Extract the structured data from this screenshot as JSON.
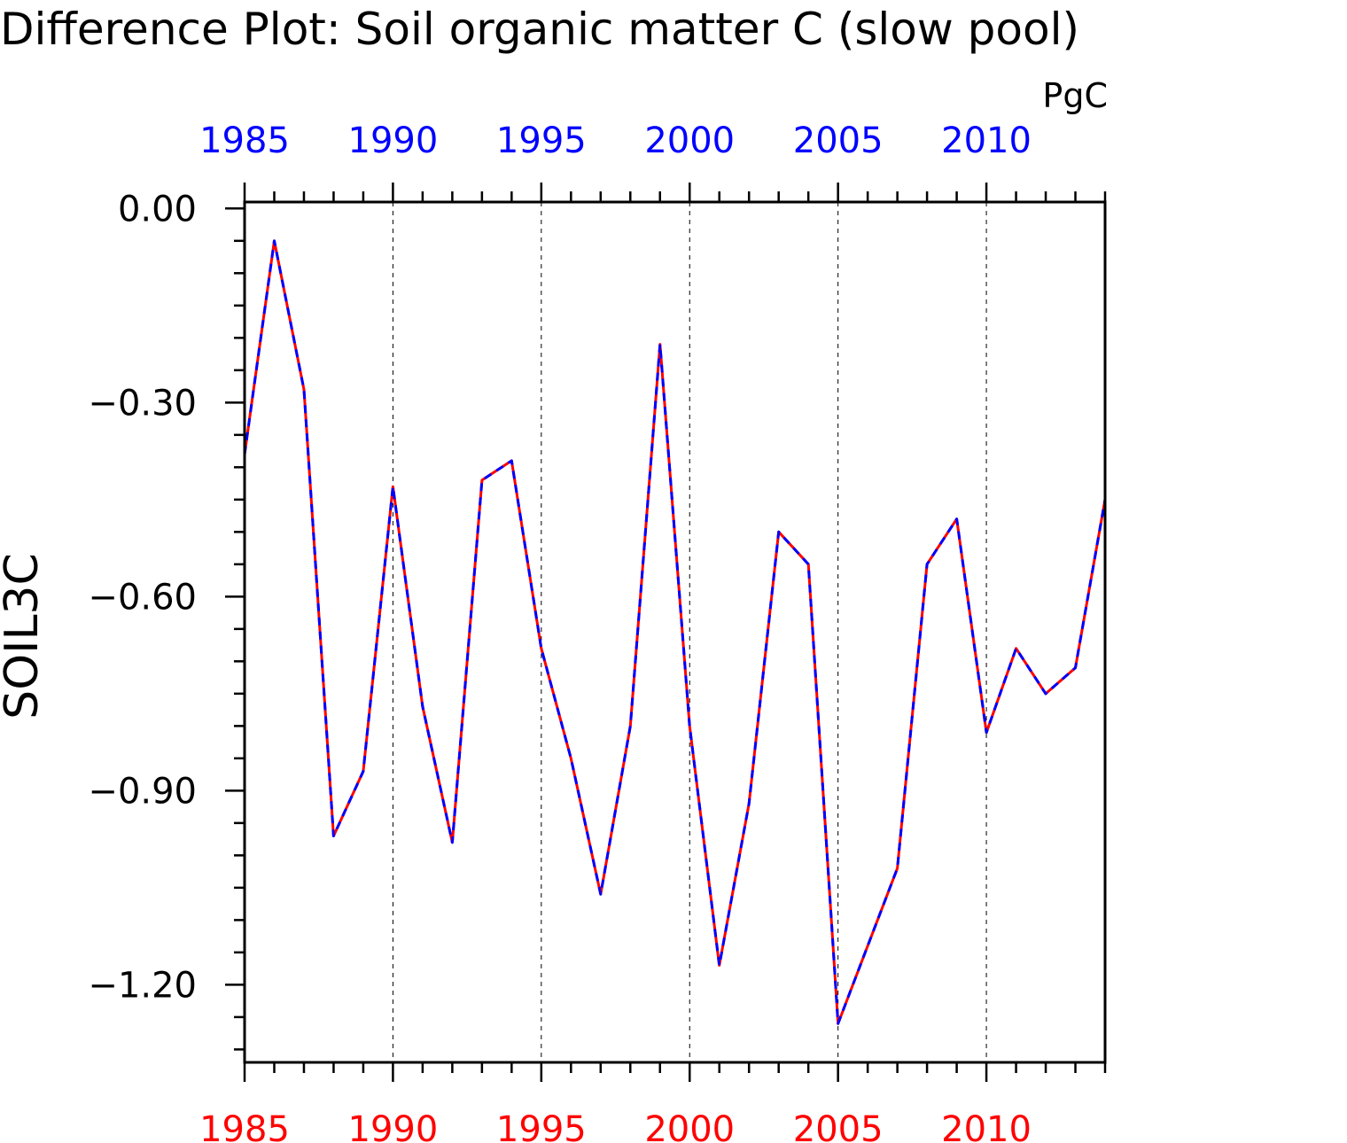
{
  "chart_data": {
    "type": "line",
    "title": "Difference Plot: Soil organic matter C (slow pool)",
    "units": "PgC",
    "ylabel": "SOIL3C",
    "xlabel": "",
    "xlim": [
      1985,
      2014
    ],
    "ylim": [
      -1.32,
      0.01
    ],
    "yticks": [
      "0.00",
      "−0.30",
      "−0.60",
      "−0.90",
      "−1.20"
    ],
    "ytick_values": [
      0.0,
      -0.3,
      -0.6,
      -0.9,
      -1.2
    ],
    "xticks": [
      "1985",
      "1990",
      "1995",
      "2000",
      "2005",
      "2010"
    ],
    "xtick_values": [
      1985,
      1990,
      1995,
      2000,
      2005,
      2010
    ],
    "grid": "vertical dashed at labeled years",
    "top_tick_color": "#0000ff",
    "bottom_tick_color": "#ff0000",
    "x": [
      1985,
      1986,
      1987,
      1988,
      1989,
      1990,
      1991,
      1992,
      1993,
      1994,
      1995,
      1996,
      1997,
      1998,
      1999,
      2000,
      2001,
      2002,
      2003,
      2004,
      2005,
      2006,
      2007,
      2008,
      2009,
      2010,
      2011,
      2012,
      2013,
      2014
    ],
    "series": [
      {
        "color": "#ff0000",
        "style": "solid",
        "values": [
          -0.38,
          -0.05,
          -0.28,
          -0.97,
          -0.87,
          -0.43,
          -0.77,
          -0.98,
          -0.42,
          -0.39,
          -0.68,
          -0.85,
          -1.06,
          -0.8,
          -0.21,
          -0.8,
          -1.17,
          -0.92,
          -0.5,
          -0.55,
          -1.26,
          -1.14,
          -1.02,
          -0.55,
          -0.48,
          -0.81,
          -0.68,
          -0.75,
          -0.71,
          -0.45
        ]
      },
      {
        "color": "#0000ff",
        "style": "dashed",
        "values": [
          -0.38,
          -0.05,
          -0.28,
          -0.97,
          -0.87,
          -0.43,
          -0.77,
          -0.98,
          -0.42,
          -0.39,
          -0.68,
          -0.85,
          -1.06,
          -0.8,
          -0.21,
          -0.8,
          -1.17,
          -0.92,
          -0.5,
          -0.55,
          -1.26,
          -1.14,
          -1.02,
          -0.55,
          -0.48,
          -0.81,
          -0.68,
          -0.75,
          -0.71,
          -0.45
        ]
      }
    ]
  }
}
